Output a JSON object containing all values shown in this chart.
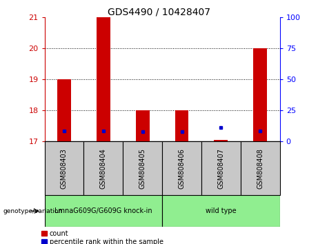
{
  "title": "GDS4490 / 10428407",
  "samples": [
    "GSM808403",
    "GSM808404",
    "GSM808405",
    "GSM808406",
    "GSM808407",
    "GSM808408"
  ],
  "group_colors": [
    "#90EE90",
    "#90EE90"
  ],
  "ylim_left": [
    17,
    21
  ],
  "ylim_right": [
    0,
    100
  ],
  "yticks_left": [
    17,
    18,
    19,
    20,
    21
  ],
  "yticks_right": [
    0,
    25,
    50,
    75,
    100
  ],
  "red_bar_bottom": 17,
  "red_bar_tops": [
    19.0,
    21.0,
    18.0,
    18.0,
    17.05,
    20.0
  ],
  "blue_dot_values": [
    17.35,
    17.35,
    17.32,
    17.32,
    17.45,
    17.35
  ],
  "bar_width": 0.35,
  "red_color": "#CC0000",
  "blue_color": "#0000CC",
  "left_axis_color": "#CC0000",
  "right_axis_color": "#0000FF",
  "sample_box_color": "#C8C8C8",
  "legend_red_label": "count",
  "legend_blue_label": "percentile rank within the sample",
  "genotype_label": "genotype/variation",
  "group_names": [
    "LmnaG609G/G609G knock-in",
    "wild type"
  ],
  "group_sample_ranges": [
    [
      0,
      2
    ],
    [
      3,
      5
    ]
  ],
  "grid_yticks": [
    18,
    19,
    20
  ],
  "title_fontsize": 10,
  "tick_fontsize": 8,
  "sample_fontsize": 7,
  "group_fontsize": 7
}
